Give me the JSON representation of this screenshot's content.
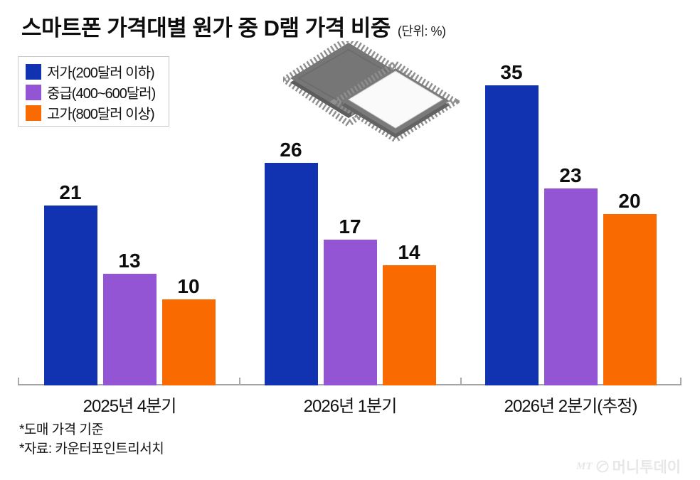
{
  "title": {
    "text": "스마트폰 가격대별 원가 중 D램 가격 비중",
    "unit": "(단위: %)"
  },
  "legend": {
    "items": [
      {
        "label": "저가(200달러 이하)",
        "color": "#1133b2"
      },
      {
        "label": "중급(400~600달러)",
        "color": "#9455d5"
      },
      {
        "label": "고가(800달러 이상)",
        "color": "#f96a00"
      }
    ]
  },
  "chart_data": {
    "type": "bar",
    "categories": [
      "2025년 4분기",
      "2026년 1분기",
      "2026년 2분기(추정)"
    ],
    "series": [
      {
        "name": "저가(200달러 이하)",
        "color": "#1133b2",
        "values": [
          21,
          26,
          35
        ]
      },
      {
        "name": "중급(400~600달러)",
        "color": "#9455d5",
        "values": [
          13,
          17,
          23
        ]
      },
      {
        "name": "고가(800달러 이상)",
        "color": "#f96a00",
        "values": [
          10,
          14,
          20
        ]
      }
    ],
    "title": "스마트폰 가격대별 원가 중 D램 가격 비중",
    "unit": "%",
    "xlabel": "",
    "ylabel": "",
    "ylim": [
      0,
      38
    ],
    "grid": false,
    "legend_position": "top-left",
    "value_labels_shown": true
  },
  "footnotes": [
    "*도매 가격 기준",
    "*자료: 카운터포인트리서치"
  ],
  "watermark": {
    "mt": "MT",
    "name": "머니투데이"
  },
  "icons": {
    "dram_chips": "dram-memory-chips-illustration",
    "mt_circle": "mt-circle-logo"
  }
}
